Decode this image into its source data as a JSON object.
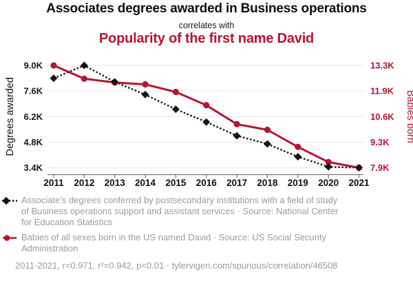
{
  "header": {
    "title": "Associates degrees awarded in Business operations",
    "connector": "correlates with",
    "subtitle": "Popularity of the first name David"
  },
  "colors": {
    "accent_red": "#b91431",
    "series_black": "#141414",
    "grid": "#e7e7e7",
    "axis_line": "#777777",
    "tick_text": "#1a1a1a",
    "legend_gray": "#9b9b9b",
    "background": "#ffffff"
  },
  "chart_data": {
    "type": "line",
    "title": "Associates degrees awarded in Business operations correlates with Popularity of the first name David",
    "categories": [
      "2011",
      "2012",
      "2013",
      "2014",
      "2015",
      "2016",
      "2017",
      "2018",
      "2019",
      "2020",
      "2021"
    ],
    "grid": true,
    "legend_position": "bottom",
    "left_axis": {
      "label": "Degrees awarded",
      "ticks": [
        "9.0K",
        "7.6K",
        "6.2K",
        "4.8K",
        "3.4K"
      ],
      "min": 3.4,
      "max": 9.0,
      "unit": "thousands"
    },
    "right_axis": {
      "label": "Babies born",
      "ticks": [
        "13.3K",
        "11.9K",
        "10.6K",
        "9.3K",
        "7.9K"
      ],
      "min": 7.9,
      "max": 13.3,
      "unit": "thousands"
    },
    "series": [
      {
        "id": "degrees-series",
        "name": "Associate's degrees conferred by postsecondary institutions with a field of study of Business operations support and assistant services",
        "axis": "left",
        "line_style": "dotted",
        "marker": "diamond",
        "color": "#141414",
        "values": [
          8.3,
          9.0,
          8.1,
          7.4,
          6.6,
          5.9,
          5.15,
          4.7,
          4.0,
          3.45,
          3.4
        ]
      },
      {
        "id": "babies-series",
        "name": "Babies of all sexes born in the US named David",
        "axis": "right",
        "line_style": "solid",
        "marker": "circle",
        "color": "#b91431",
        "values": [
          13.3,
          12.6,
          12.4,
          12.3,
          11.9,
          11.2,
          10.2,
          9.9,
          9.0,
          8.2,
          7.9
        ]
      }
    ]
  },
  "legend": {
    "series1": "Associate's degrees conferred by postsecondary institutions with a field of study of Business operations support and assistant services · Source: National Center for Education Statistics",
    "series2": "Babies of all sexes born in the US named David · Source: US Social Security Administration"
  },
  "footer": {
    "text": "2011-2021, r=0.971, r²=0.942, p<0.01 · tylervigen.com/spurious/correlation/46508"
  }
}
